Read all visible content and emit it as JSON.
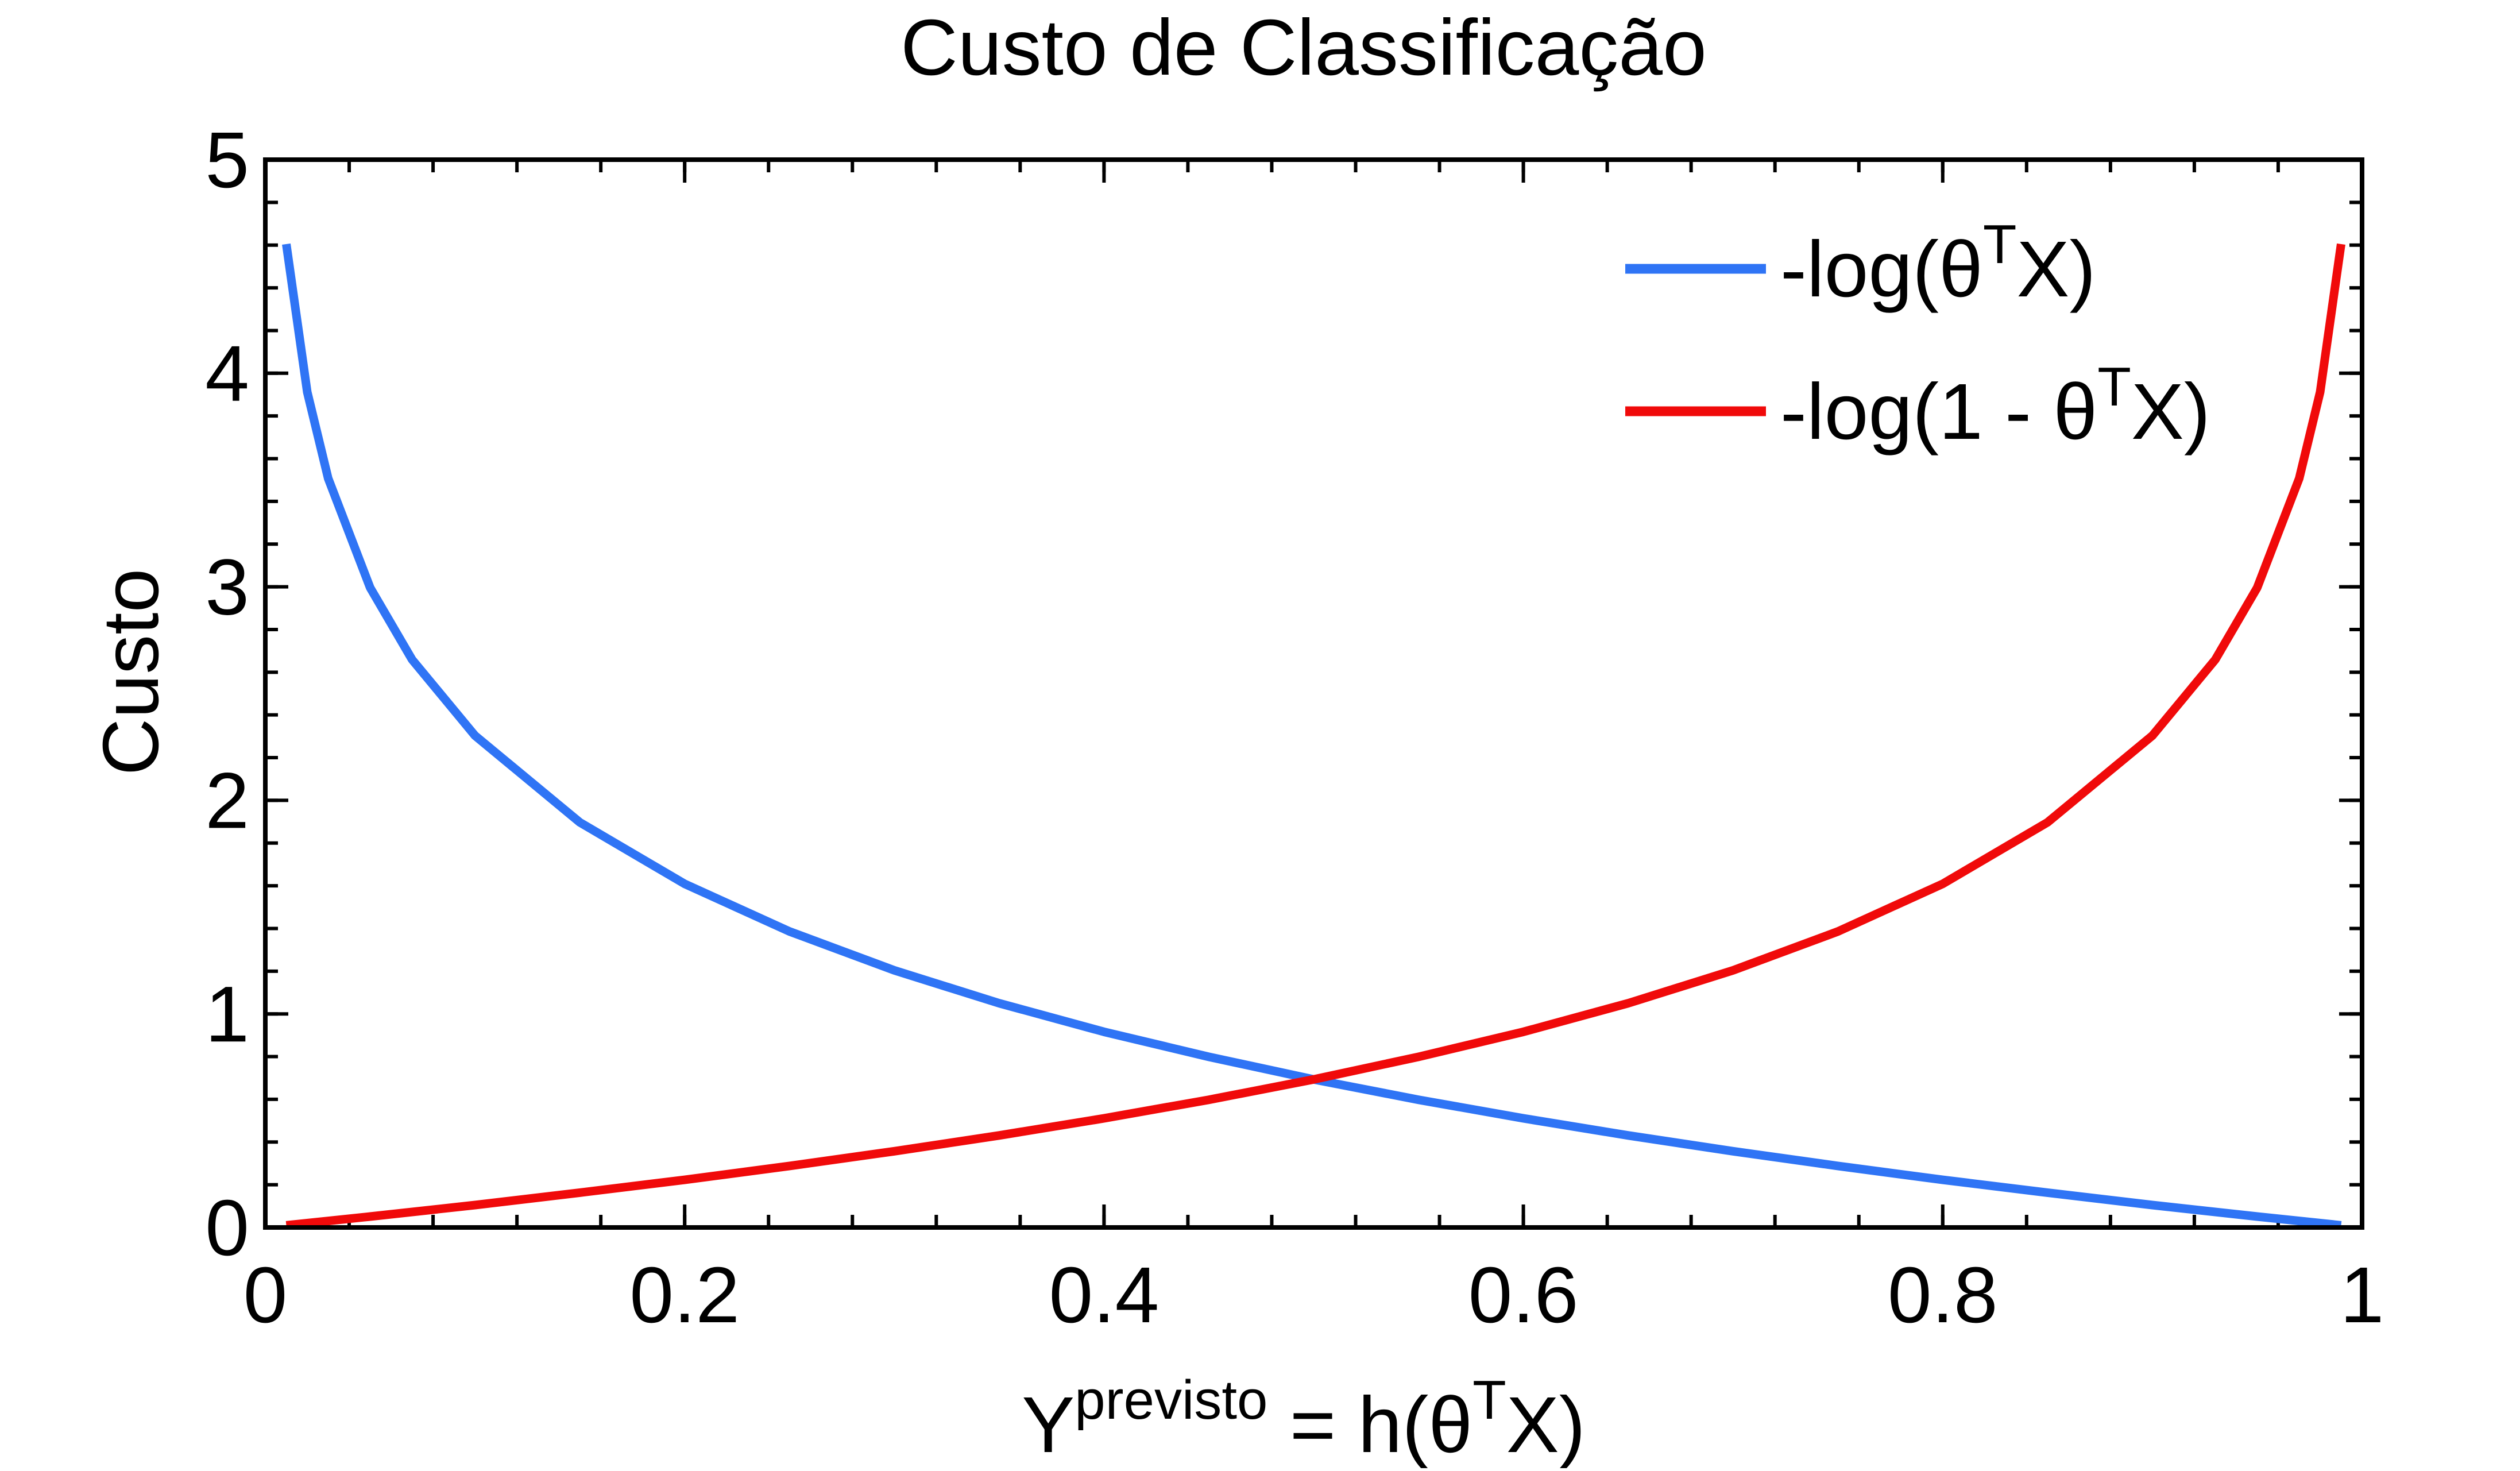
{
  "chart_data": {
    "type": "line",
    "title": "Custo de Classificação",
    "ylabel": "Custo",
    "xlabel": {
      "base": "Y",
      "base_sup": "previsto",
      "rest": " = h(θ",
      "rest_sup": "T",
      "tail": "X)"
    },
    "xlim": [
      0,
      1
    ],
    "ylim": [
      0,
      5
    ],
    "x_ticks": [
      0,
      0.2,
      0.4,
      0.6,
      0.8,
      1
    ],
    "x_tick_labels": [
      "0",
      "0.2",
      "0.4",
      "0.6",
      "0.8",
      "1"
    ],
    "y_ticks": [
      0,
      1,
      2,
      3,
      4,
      5
    ],
    "y_tick_labels": [
      "0",
      "1",
      "2",
      "3",
      "4",
      "5"
    ],
    "x_minor_step": 0.04,
    "y_minor_step": 0.2,
    "grid": false,
    "legend_position": "top-right",
    "series": [
      {
        "name": "-log(θTX)",
        "label_parts": [
          "-log(θ",
          "T",
          "X)"
        ],
        "color": "#2f74f5",
        "function": "-ln(x)",
        "x": [
          0.01,
          0.02,
          0.03,
          0.05,
          0.07,
          0.1,
          0.15,
          0.2,
          0.25,
          0.3,
          0.35,
          0.4,
          0.45,
          0.5,
          0.55,
          0.6,
          0.65,
          0.7,
          0.75,
          0.8,
          0.85,
          0.9,
          0.95,
          0.99
        ],
        "y": [
          4.605,
          3.912,
          3.507,
          2.996,
          2.659,
          2.303,
          1.897,
          1.609,
          1.386,
          1.204,
          1.05,
          0.916,
          0.799,
          0.693,
          0.598,
          0.511,
          0.431,
          0.357,
          0.288,
          0.223,
          0.163,
          0.105,
          0.051,
          0.01
        ]
      },
      {
        "name": "-log(1 - θTX)",
        "label_parts": [
          "-log(1 - θ",
          "T",
          "X)"
        ],
        "color": "#f00a0a",
        "function": "-ln(1-x)",
        "x": [
          0.01,
          0.05,
          0.1,
          0.15,
          0.2,
          0.25,
          0.3,
          0.35,
          0.4,
          0.45,
          0.5,
          0.55,
          0.6,
          0.65,
          0.7,
          0.75,
          0.8,
          0.85,
          0.9,
          0.93,
          0.95,
          0.97,
          0.98,
          0.99
        ],
        "y": [
          0.01,
          0.051,
          0.105,
          0.163,
          0.223,
          0.288,
          0.357,
          0.431,
          0.511,
          0.598,
          0.693,
          0.799,
          0.916,
          1.05,
          1.204,
          1.386,
          1.609,
          1.897,
          2.303,
          2.659,
          2.996,
          3.507,
          3.912,
          4.605
        ]
      }
    ]
  }
}
